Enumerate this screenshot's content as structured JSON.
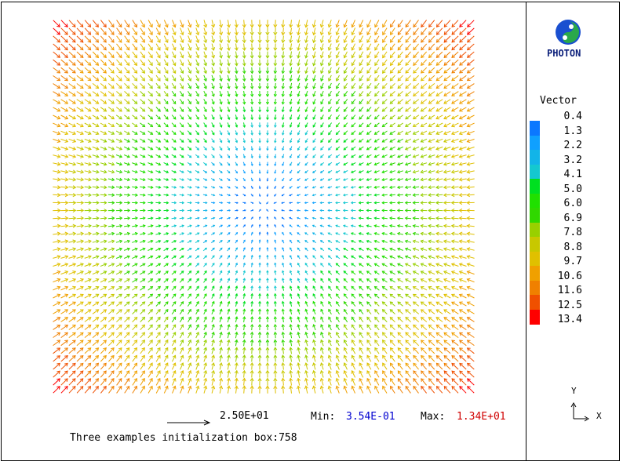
{
  "chart_data": {
    "type": "vector-field",
    "grid": {
      "columns": 54,
      "rows": 48
    },
    "x_range": [
      -1,
      1
    ],
    "y_range": [
      -1,
      1
    ],
    "field": "radial outward from center, magnitude grows toward edges",
    "legend": {
      "title": "Vector",
      "levels": [
        "0.4",
        "1.3",
        "2.2",
        "3.2",
        "4.1",
        "5.0",
        "6.0",
        "6.9",
        "7.8",
        "8.8",
        "9.7",
        "10.6",
        "11.6",
        "12.5",
        "13.4"
      ],
      "colors": [
        "#0000ff",
        "#0b78ff",
        "#0fa0ff",
        "#12b4e8",
        "#14c8d0",
        "#00e020",
        "#20e000",
        "#30d800",
        "#98d000",
        "#c8c800",
        "#e0c000",
        "#f0a000",
        "#f08000",
        "#f05000",
        "#ff0000"
      ]
    },
    "reference_vector": {
      "value": "2.50E+01"
    },
    "min": {
      "label": "Min:",
      "value": "3.54E-01"
    },
    "max": {
      "label": "Max:",
      "value": "1.34E+01"
    },
    "caption": "Three examples initialization box:758"
  },
  "logo": {
    "name": "photon-logo-icon",
    "label": "PHOTON"
  },
  "axes": {
    "x": "X",
    "y": "Y"
  }
}
